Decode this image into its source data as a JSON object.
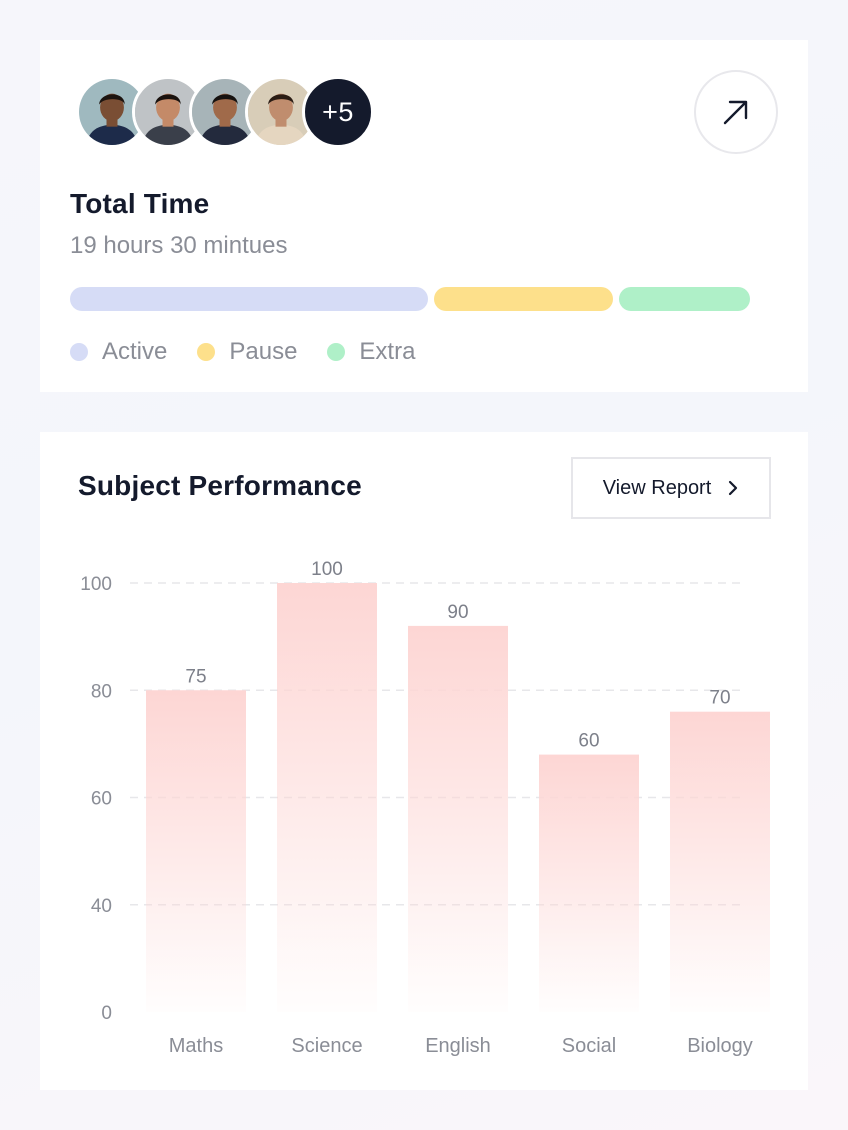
{
  "time_card": {
    "avatars": [
      {
        "name": "avatar-boy-1",
        "bg": "#9fb9bf",
        "skin": "#7a4e34",
        "hair": "#1c1410",
        "shirt": "#1d2b4a"
      },
      {
        "name": "avatar-girl-1",
        "bg": "#bfc3c6",
        "skin": "#c48a68",
        "hair": "#1a120e",
        "shirt": "#3a3f4a"
      },
      {
        "name": "avatar-boy-2",
        "bg": "#a7b4b8",
        "skin": "#a06a4a",
        "hair": "#161210",
        "shirt": "#232a3d"
      },
      {
        "name": "avatar-girl-2",
        "bg": "#d8cdb8",
        "skin": "#c08d6e",
        "hair": "#2a1c14",
        "shirt": "#e5d6c0"
      }
    ],
    "more_count": "+5",
    "title": "Total Time",
    "subtitle": "19 hours 30 mintues",
    "segments": [
      {
        "name": "Active",
        "fraction": 0.527,
        "color": "#d6dcf6"
      },
      {
        "name": "Pause",
        "fraction": 0.263,
        "color": "#fde08b"
      },
      {
        "name": "Extra",
        "fraction": 0.192,
        "color": "#aff0c8"
      }
    ],
    "legend": [
      "Active",
      "Pause",
      "Extra"
    ]
  },
  "performance_card": {
    "title": "Subject Performance",
    "view_report_label": "View Report"
  },
  "chart_data": {
    "type": "bar",
    "categories": [
      "Maths",
      "Science",
      "English",
      "Social",
      "Biology"
    ],
    "values": [
      75,
      100,
      90,
      60,
      70
    ],
    "y_ticks": [
      0,
      40,
      60,
      80,
      100
    ],
    "ylim": [
      0,
      100
    ],
    "grid": true,
    "bar_color": "#fdd6d4",
    "title": "",
    "xlabel": "",
    "ylabel": ""
  }
}
